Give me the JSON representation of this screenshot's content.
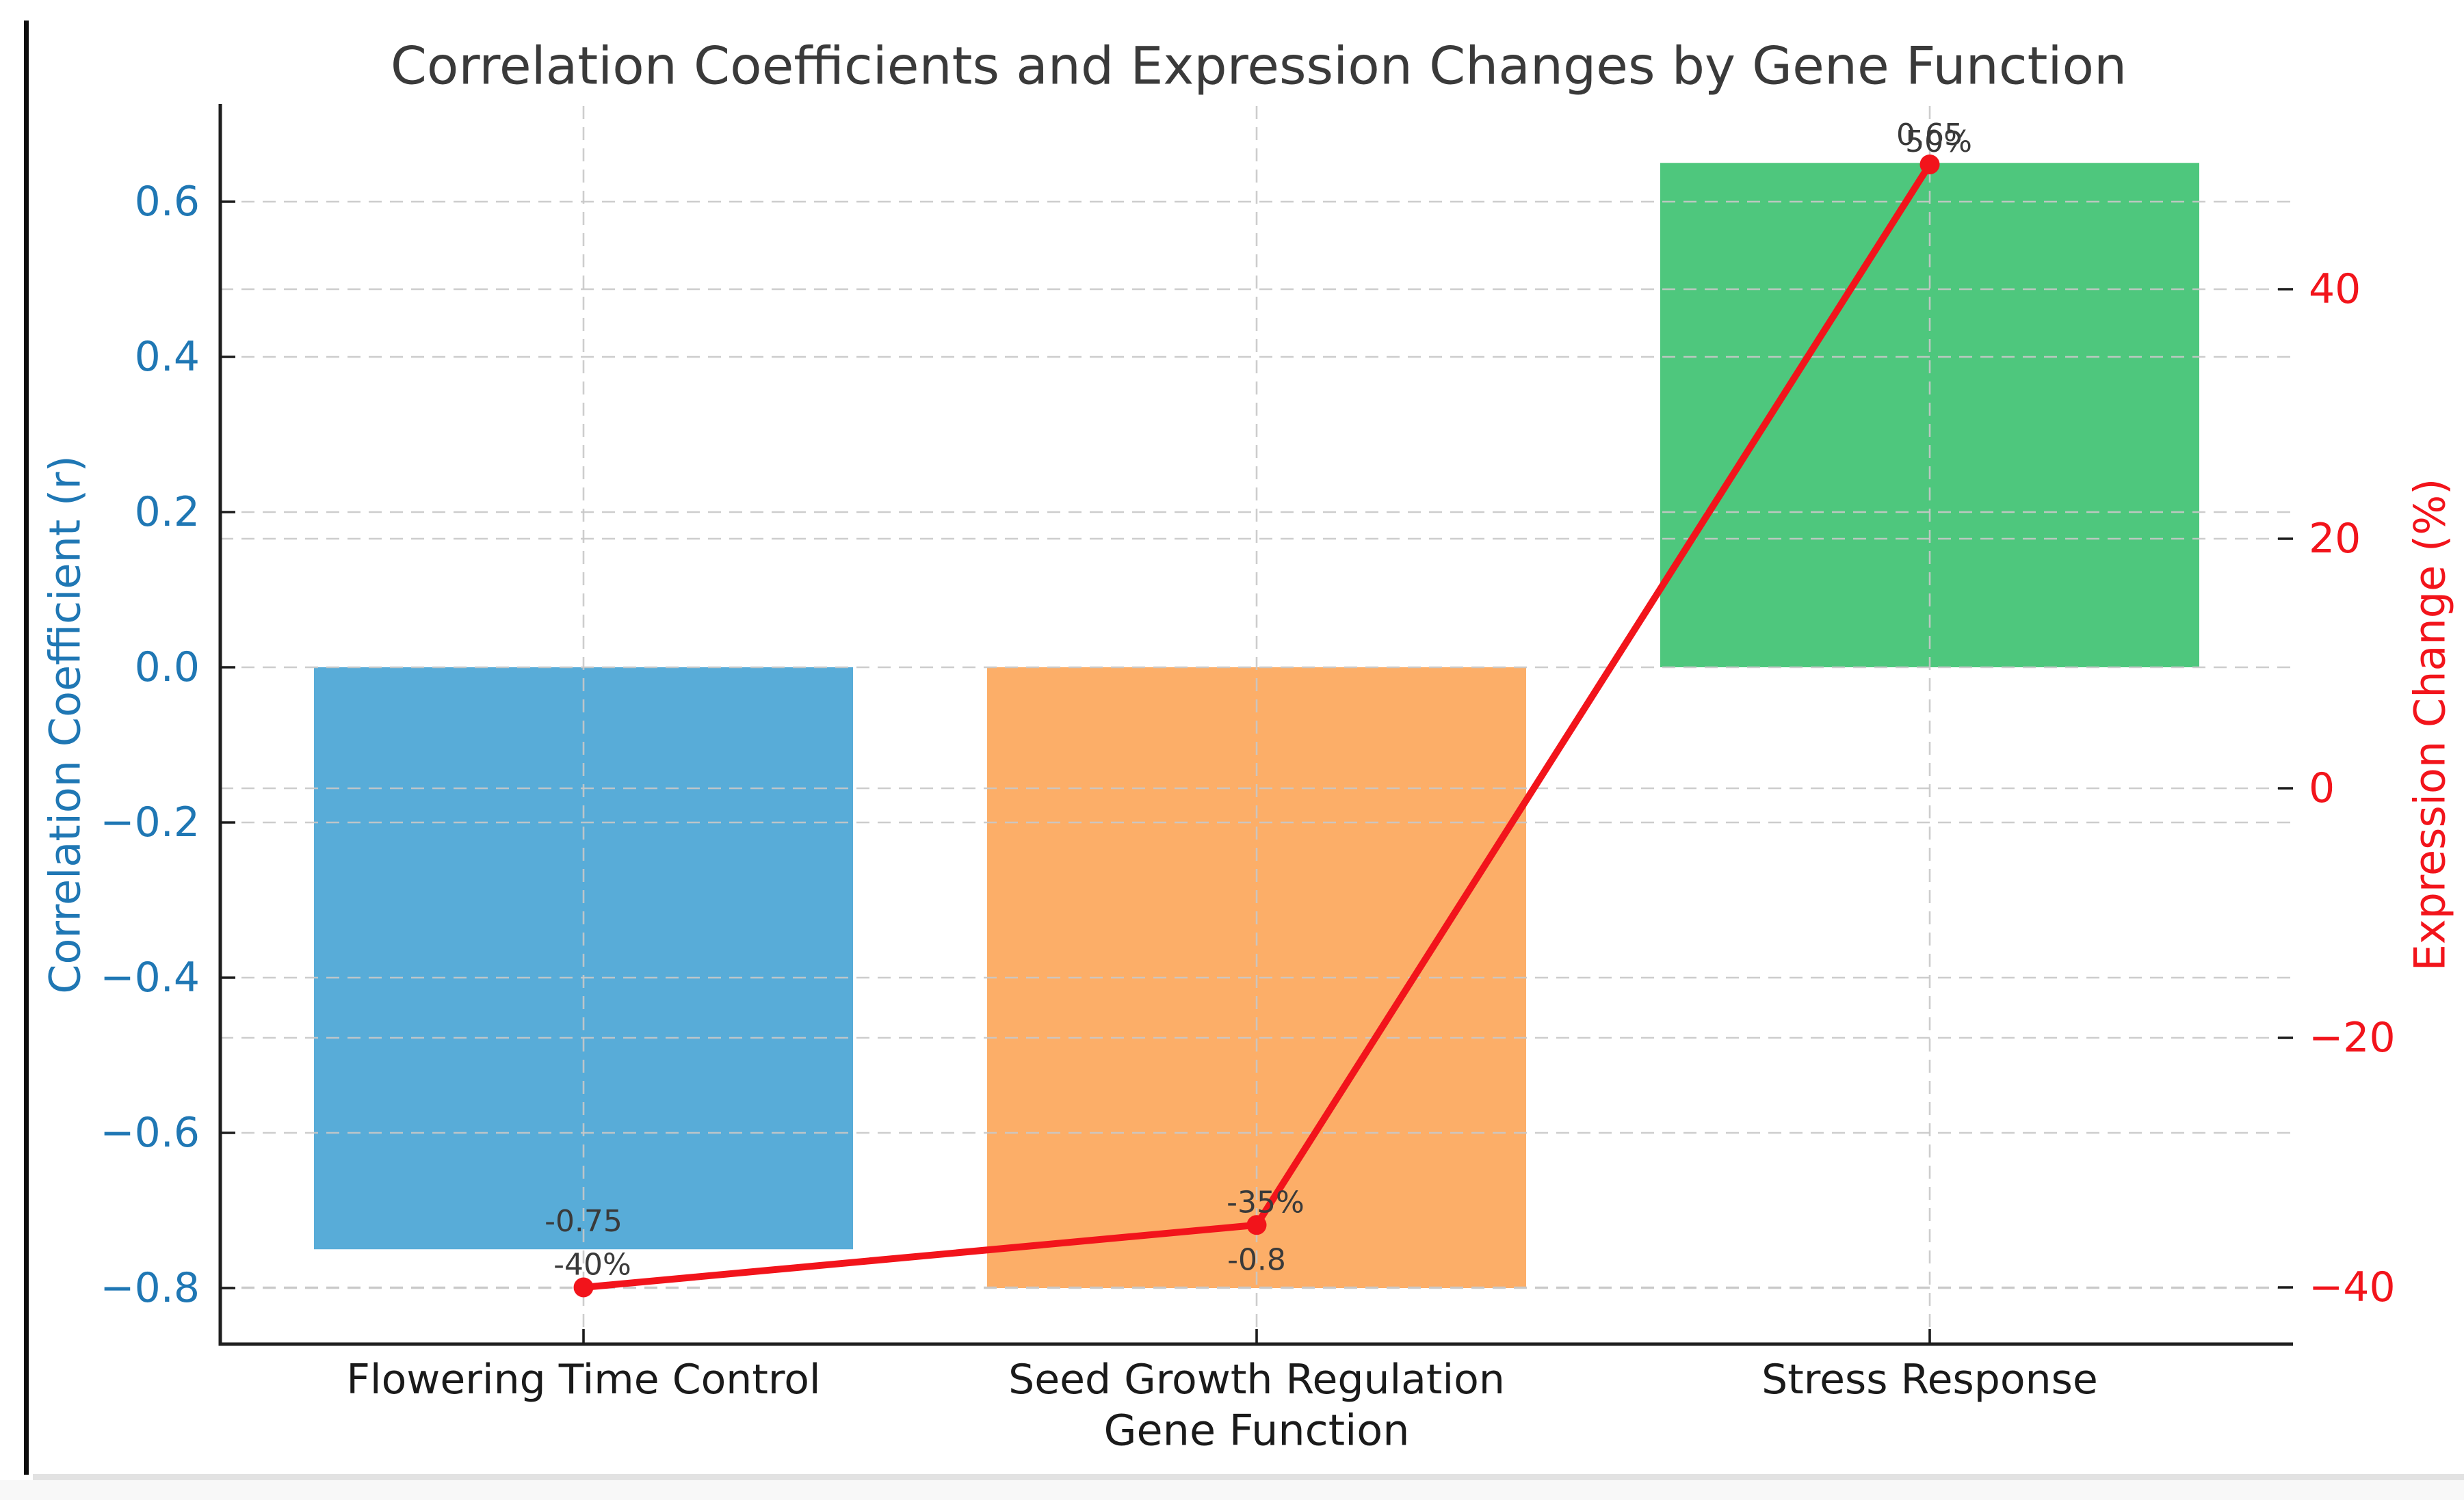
{
  "chart_data": {
    "type": "bar+line dual-axis",
    "title": "Correlation Coefficients and Expression Changes by Gene Function",
    "xlabel": "Gene Function",
    "categories": [
      "Flowering Time Control",
      "Seed Growth Regulation",
      "Stress Response"
    ],
    "series": [
      {
        "name": "Correlation Coefficient (r)",
        "type": "bar",
        "axis": "left",
        "values": [
          -0.75,
          -0.8,
          0.65
        ],
        "value_labels": [
          "-0.75",
          "-0.8",
          "0.65"
        ],
        "bar_colors": [
          "#58ACD8",
          "#FCAE68",
          "#4EC77D"
        ]
      },
      {
        "name": "Expression Change (%)",
        "type": "line",
        "axis": "right",
        "values": [
          -40,
          -35,
          50
        ],
        "value_labels": [
          "-40%",
          "-35%",
          "50%"
        ],
        "color": "#F2141B"
      }
    ],
    "left_axis": {
      "label": "Correlation Coefficient (r)",
      "color": "#1f77b4",
      "tick_values": [
        0.6,
        0.4,
        0.2,
        0.0,
        -0.2,
        -0.4,
        -0.6,
        -0.8
      ],
      "tick_labels": [
        "0.6",
        "0.4",
        "0.2",
        "0.0",
        "−0.2",
        "−0.4",
        "−0.6",
        "−0.8"
      ],
      "range": [
        -0.8725,
        0.7225
      ]
    },
    "right_axis": {
      "label": "Expression Change (%)",
      "color": "#F2141B",
      "tick_values": [
        40,
        20,
        0,
        -20,
        -40
      ],
      "tick_labels": [
        "40",
        "20",
        "0",
        "−20",
        "−40"
      ],
      "range": [
        -44.5,
        54.5
      ]
    },
    "grid": "dashed, both axes, horizontal and vertical at category centers",
    "legend": "none",
    "annotation_color": "#3a3a3a"
  }
}
